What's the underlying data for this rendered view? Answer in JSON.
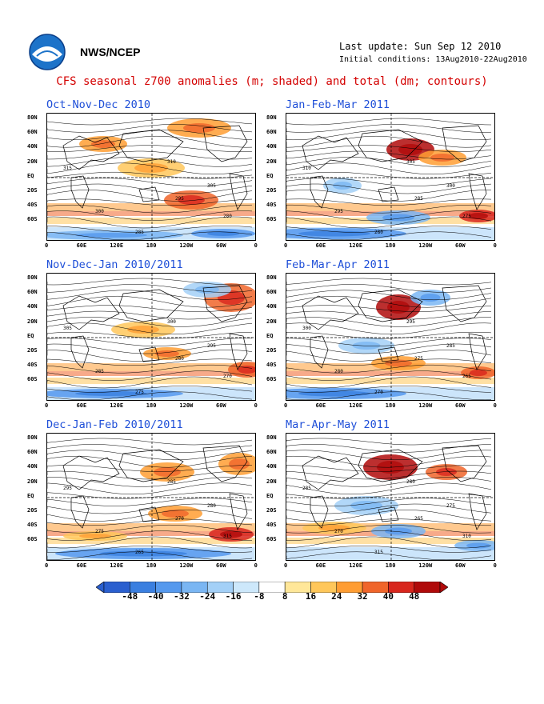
{
  "header": {
    "org": "NWS/NCEP",
    "last_update": "Last update: Sun Sep 12 2010",
    "initial_conditions": "Initial conditions: 13Aug2010-22Aug2010",
    "title": "CFS seasonal z700 anomalies (m; shaded) and total (dm; contours)"
  },
  "panels": [
    {
      "title": "Oct-Nov-Dec 2010"
    },
    {
      "title": "Jan-Feb-Mar 2011"
    },
    {
      "title": "Nov-Dec-Jan 2010/2011"
    },
    {
      "title": "Feb-Mar-Apr 2011"
    },
    {
      "title": "Dec-Jan-Feb 2010/2011"
    },
    {
      "title": "Mar-Apr-May 2011"
    }
  ],
  "axes": {
    "y_ticks": [
      "80N",
      "60N",
      "40N",
      "20N",
      "EQ",
      "20S",
      "40S",
      "60S"
    ],
    "x_ticks": [
      "0",
      "60E",
      "120E",
      "180",
      "120W",
      "60W",
      "0"
    ]
  },
  "colorbar": {
    "labels": [
      "-48",
      "-40",
      "-32",
      "-24",
      "-16",
      "-8",
      "8",
      "16",
      "24",
      "32",
      "40",
      "48"
    ],
    "colors": [
      "#2a5fcf",
      "#3a7fe0",
      "#5599ee",
      "#7ab6f3",
      "#a3d0f7",
      "#cde8fb",
      "#ffffff",
      "#ffe799",
      "#ffc75a",
      "#ff9d33",
      "#f0652a",
      "#d8261d",
      "#b00a0a"
    ]
  },
  "contour_labels": [
    "315",
    "310",
    "305",
    "300",
    "295",
    "285",
    "280",
    "275",
    "270",
    "265"
  ]
}
